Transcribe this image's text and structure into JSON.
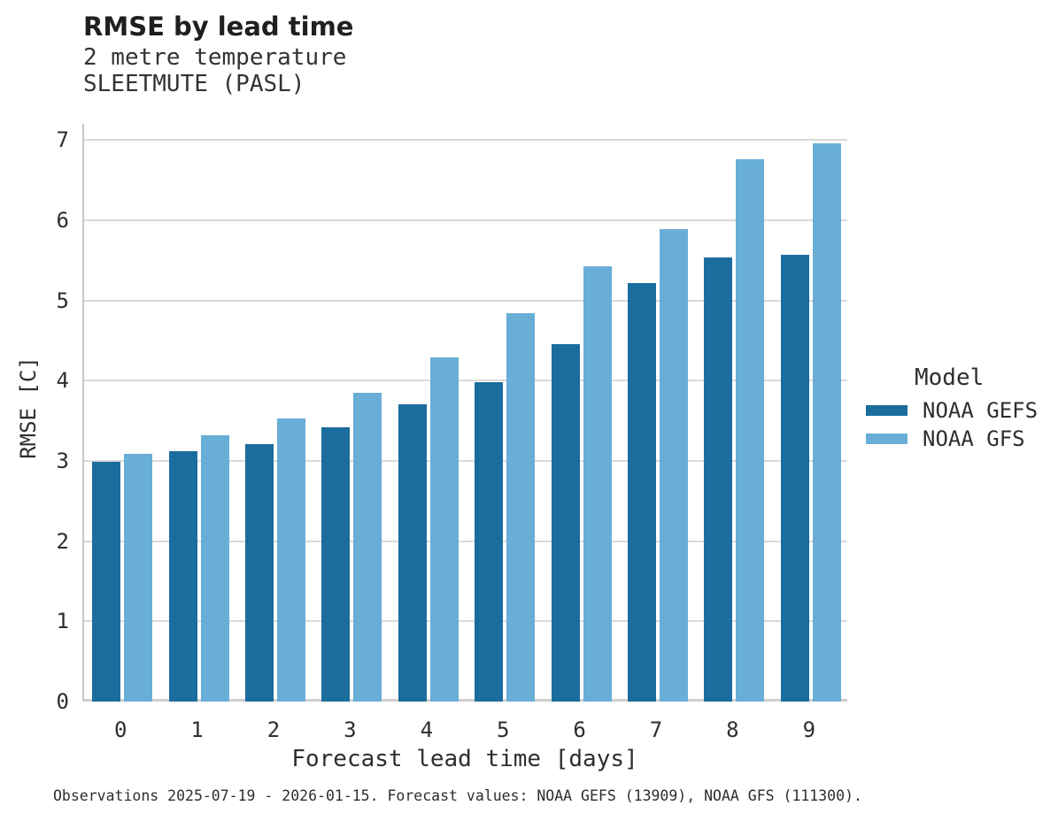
{
  "header": {
    "title": "RMSE by lead time",
    "subtitle_variable": "2 metre temperature",
    "subtitle_station": "SLEETMUTE (PASL)"
  },
  "chart_data": {
    "type": "bar",
    "title": "RMSE by lead time",
    "subtitle_lines": [
      "2 metre temperature",
      "SLEETMUTE (PASL)"
    ],
    "categories": [
      "0",
      "1",
      "2",
      "3",
      "4",
      "5",
      "6",
      "7",
      "8",
      "9"
    ],
    "series": [
      {
        "name": "NOAA GEFS",
        "color": "#1b6d9d",
        "values": [
          2.99,
          3.12,
          3.21,
          3.42,
          3.7,
          3.98,
          4.46,
          5.21,
          5.54,
          5.57
        ]
      },
      {
        "name": "NOAA GFS",
        "color": "#69aed7",
        "values": [
          3.09,
          3.32,
          3.53,
          3.85,
          4.29,
          4.84,
          5.43,
          5.89,
          6.76,
          6.96
        ]
      }
    ],
    "xlabel": "Forecast lead time [days]",
    "ylabel": "RMSE [C]",
    "ylim": [
      0,
      7.2
    ],
    "yticks": [
      0,
      1,
      2,
      3,
      4,
      5,
      6,
      7
    ],
    "grid": true,
    "legend_title": "Model",
    "legend_position": "right",
    "grid_color": "#dadada",
    "background_color": "#ffffff"
  },
  "legend": {
    "title": "Model",
    "items": [
      {
        "label": "NOAA GEFS",
        "color": "#1b6d9d"
      },
      {
        "label": "NOAA GFS",
        "color": "#69aed7"
      }
    ]
  },
  "caption": "Observations 2025-07-19 - 2026-01-15. Forecast values: NOAA GEFS (13909), NOAA GFS (111300)."
}
